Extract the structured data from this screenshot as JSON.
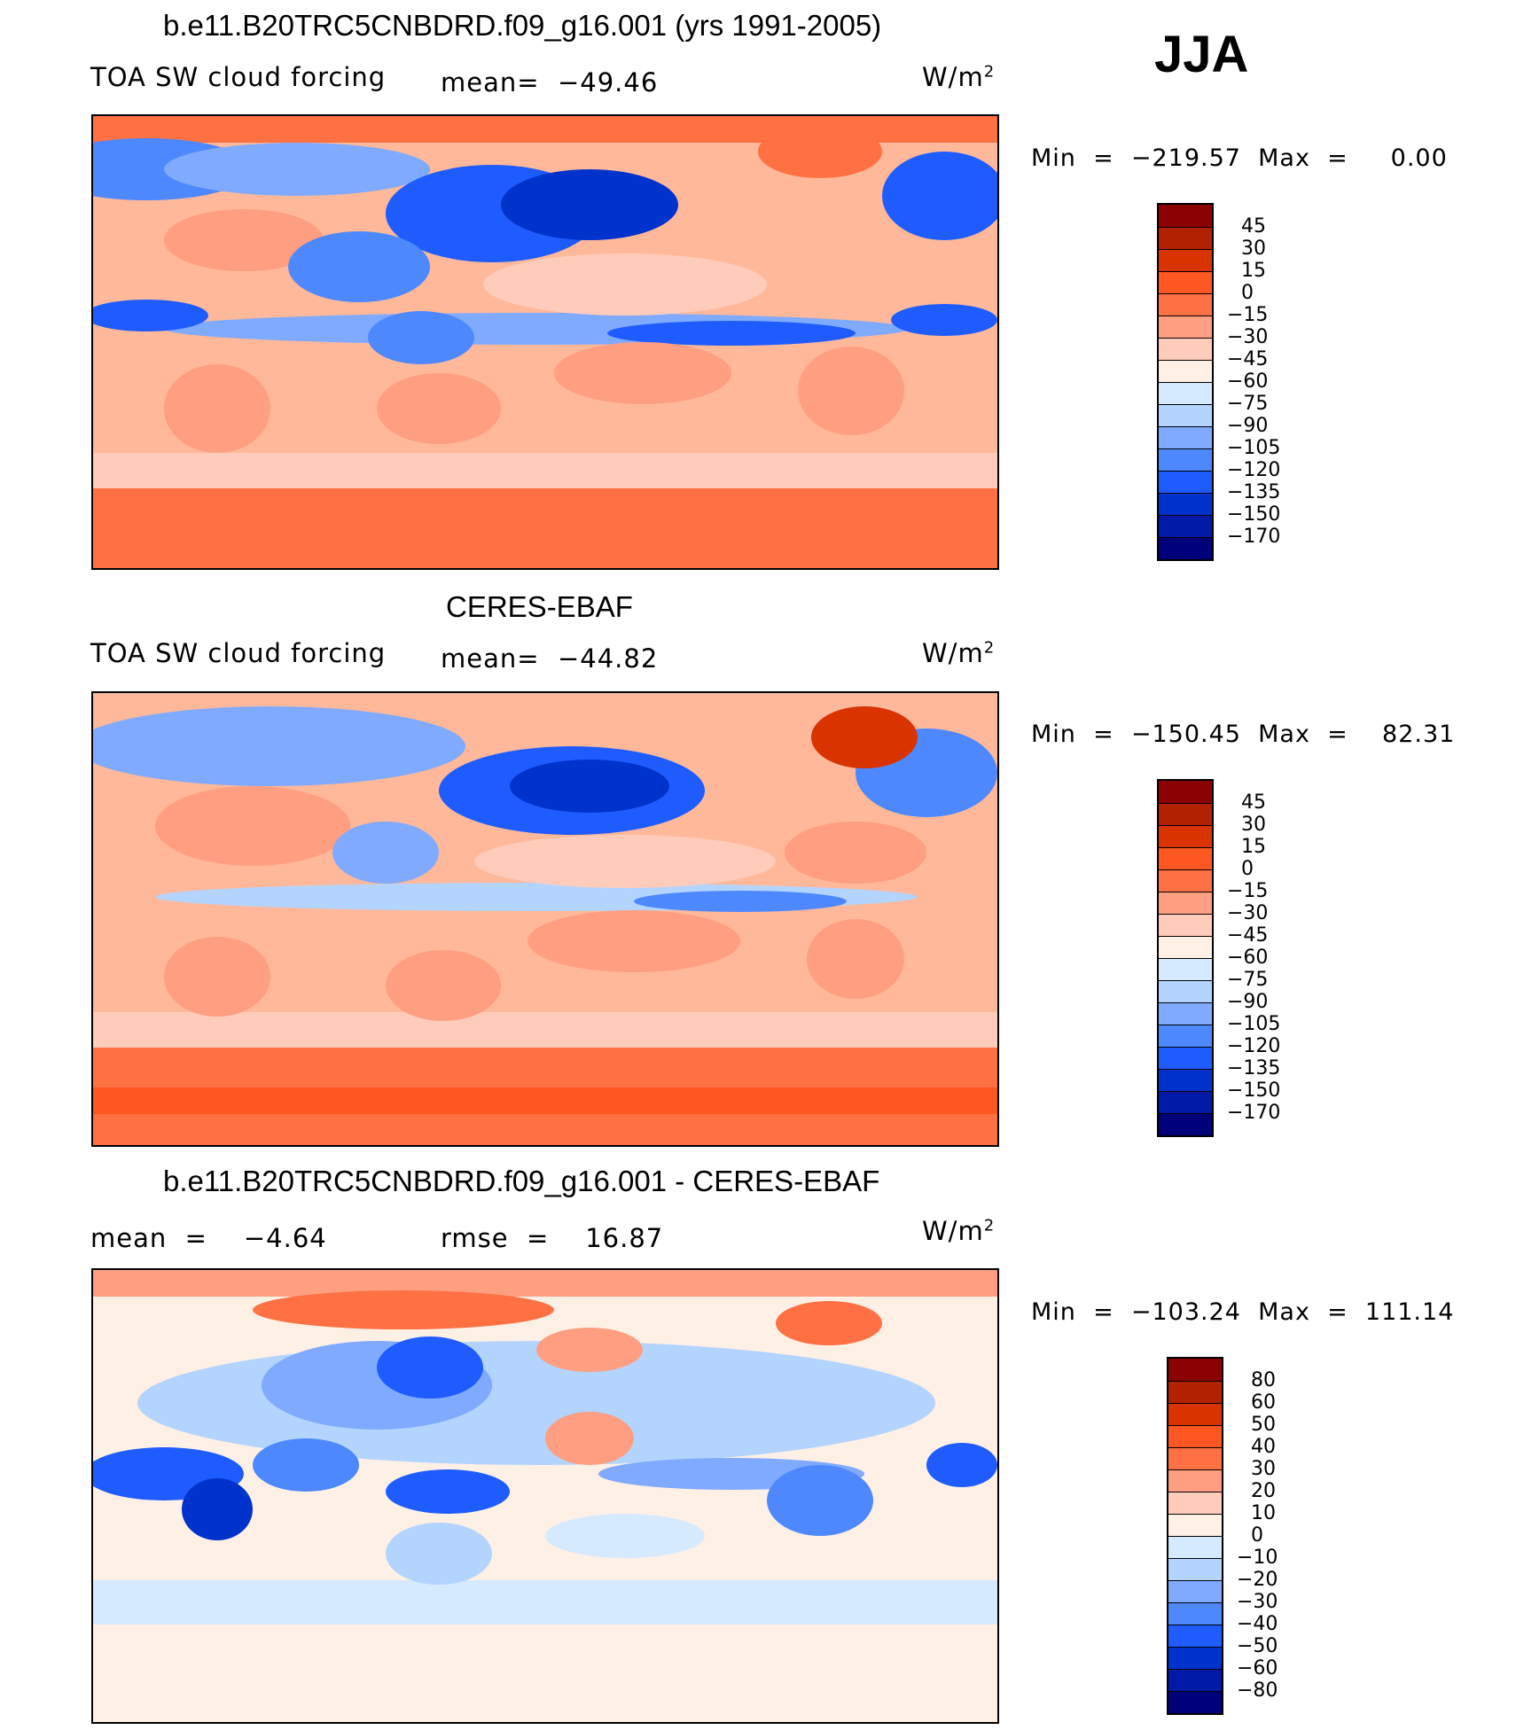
{
  "season": "JJA",
  "panels": [
    {
      "title": "b.e11.B20TRC5CNBDRD.f09_g16.001 (yrs 1991-2005)",
      "variable": "TOA SW cloud forcing",
      "stat": "mean=  −49.46",
      "units_base": "W/m",
      "units_exp": "2",
      "minmax": "Min  =  −219.57  Max  =     0.00",
      "colorbar": {
        "labels": [
          "45",
          "30",
          "15",
          "0",
          "−15",
          "−30",
          "−45",
          "−60",
          "−75",
          "−90",
          "−105",
          "−120",
          "−135",
          "−150",
          "−170"
        ],
        "colors": [
          "#8b0000",
          "#b22100",
          "#d93400",
          "#ff5722",
          "#ff7043",
          "#ff9e80",
          "#ffccbc",
          "#fff0e6",
          "#d6eaff",
          "#b3d4ff",
          "#80aaff",
          "#4d88ff",
          "#1f5cff",
          "#0033cc",
          "#0019a6",
          "#00007a"
        ]
      }
    },
    {
      "title": "CERES-EBAF",
      "variable": "TOA SW cloud forcing",
      "stat": "mean=  −44.82",
      "units_base": "W/m",
      "units_exp": "2",
      "minmax": "Min  =  −150.45  Max  =    82.31",
      "colorbar": {
        "labels": [
          "45",
          "30",
          "15",
          "0",
          "−15",
          "−30",
          "−45",
          "−60",
          "−75",
          "−90",
          "−105",
          "−120",
          "−135",
          "−150",
          "−170"
        ],
        "colors": [
          "#8b0000",
          "#b22100",
          "#d93400",
          "#ff5722",
          "#ff7043",
          "#ff9e80",
          "#ffccbc",
          "#fff0e6",
          "#d6eaff",
          "#b3d4ff",
          "#80aaff",
          "#4d88ff",
          "#1f5cff",
          "#0033cc",
          "#0019a6",
          "#00007a"
        ]
      }
    },
    {
      "title": "b.e11.B20TRC5CNBDRD.f09_g16.001 - CERES-EBAF",
      "variable": "mean  =    −4.64",
      "stat": "rmse  =    16.87",
      "units_base": "W/m",
      "units_exp": "2",
      "minmax": "Min  =  −103.24  Max  =  111.14",
      "colorbar": {
        "labels": [
          "80",
          "60",
          "50",
          "40",
          "30",
          "20",
          "10",
          "0",
          "−10",
          "−20",
          "−30",
          "−40",
          "−50",
          "−60",
          "−80"
        ],
        "colors": [
          "#8b0000",
          "#b22100",
          "#d93400",
          "#ff5722",
          "#ff7043",
          "#ff9e80",
          "#ffccbc",
          "#fff0e6",
          "#d6eaff",
          "#b3d4ff",
          "#80aaff",
          "#4d88ff",
          "#1f5cff",
          "#0033cc",
          "#0019a6",
          "#00007a"
        ]
      }
    }
  ]
}
